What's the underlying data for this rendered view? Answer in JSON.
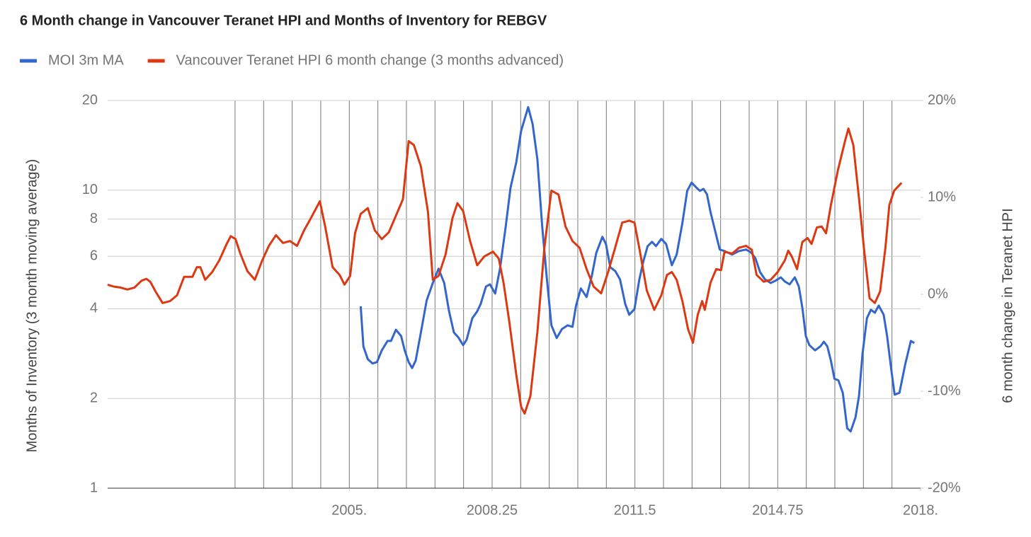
{
  "chart_data": {
    "type": "line",
    "title": "6 Month change in Vancouver Teranet HPI and Months of Inventory for REBGV",
    "ylabel": "Months of Inventory (3 month moving average)",
    "y2label": "6 month change in Teranet HPI",
    "xlim": [
      1999.5,
      2018
    ],
    "xticks": [
      {
        "value": 2005,
        "label": "2005."
      },
      2008.25,
      2011.5,
      2014.75,
      {
        "value": 2018,
        "label": "2018."
      }
    ],
    "xgrid": [
      2002.4,
      2003.05,
      2003.7,
      2004.35,
      2005,
      2005.65,
      2006.3,
      2006.95,
      2007.6,
      2008.25,
      2008.9,
      2009.55,
      2010.2,
      2010.85,
      2011.5,
      2012.15,
      2012.8,
      2013.45,
      2014.1,
      2014.75,
      2015.4,
      2016.05,
      2016.7,
      2017.35
    ],
    "ylim": [
      1,
      20
    ],
    "ylog": true,
    "yticks": [
      1,
      2,
      4,
      6,
      8,
      10,
      20
    ],
    "y2lim": [
      -20,
      20
    ],
    "y2ticks": [
      {
        "value": -20,
        "label": "-20%"
      },
      {
        "value": -10,
        "label": "-10%"
      },
      {
        "value": 0,
        "label": "0%"
      },
      {
        "value": 10,
        "label": "10%"
      },
      {
        "value": 20,
        "label": "20%"
      }
    ],
    "grid": true,
    "legend": "top",
    "series": [
      {
        "name": "MOI 3m MA",
        "color": "#3366cc",
        "axis": "y",
        "x": [
          2005.26,
          2005.32,
          2005.42,
          2005.53,
          2005.63,
          2005.74,
          2005.87,
          2005.95,
          2006.06,
          2006.18,
          2006.26,
          2006.35,
          2006.43,
          2006.51,
          2006.63,
          2006.76,
          2006.9,
          2007.03,
          2007.16,
          2007.27,
          2007.38,
          2007.48,
          2007.59,
          2007.67,
          2007.8,
          2007.91,
          2007.99,
          2008.11,
          2008.2,
          2008.32,
          2008.43,
          2008.56,
          2008.67,
          2008.8,
          2008.91,
          2009.07,
          2009.17,
          2009.28,
          2009.39,
          2009.49,
          2009.6,
          2009.72,
          2009.84,
          2009.97,
          2010.08,
          2010.16,
          2010.27,
          2010.4,
          2010.52,
          2010.62,
          2010.76,
          2010.84,
          2010.94,
          2011.05,
          2011.16,
          2011.28,
          2011.37,
          2011.49,
          2011.6,
          2011.69,
          2011.79,
          2011.89,
          2011.98,
          2012.1,
          2012.21,
          2012.34,
          2012.45,
          2012.58,
          2012.69,
          2012.79,
          2012.9,
          2012.98,
          2013.06,
          2013.14,
          2013.22,
          2013.34,
          2013.43,
          2013.54,
          2013.71,
          2013.87,
          2014.03,
          2014.14,
          2014.24,
          2014.35,
          2014.46,
          2014.59,
          2014.7,
          2014.82,
          2014.91,
          2015.02,
          2015.14,
          2015.23,
          2015.31,
          2015.39,
          2015.47,
          2015.6,
          2015.72,
          2015.8,
          2015.88,
          2015.96,
          2016.04,
          2016.13,
          2016.23,
          2016.33,
          2016.41,
          2016.52,
          2016.6,
          2016.68,
          2016.78,
          2016.87,
          2016.96,
          2017.05,
          2017.16,
          2017.24,
          2017.33,
          2017.41,
          2017.52,
          2017.65,
          2017.78,
          2017.86
        ],
        "values": [
          4.08,
          2.99,
          2.71,
          2.62,
          2.65,
          2.9,
          3.12,
          3.12,
          3.4,
          3.24,
          2.9,
          2.65,
          2.53,
          2.68,
          3.33,
          4.26,
          4.88,
          5.45,
          4.88,
          3.92,
          3.33,
          3.21,
          3.02,
          3.15,
          3.72,
          3.92,
          4.15,
          4.75,
          4.83,
          4.5,
          5.45,
          7.56,
          10.2,
          12.4,
          15.8,
          19.0,
          16.7,
          12.7,
          7.56,
          5.16,
          3.52,
          3.19,
          3.42,
          3.52,
          3.48,
          4.1,
          4.68,
          4.38,
          5.16,
          6.15,
          6.97,
          6.6,
          5.51,
          5.36,
          5.02,
          4.15,
          3.82,
          3.99,
          5.02,
          5.75,
          6.49,
          6.71,
          6.49,
          6.86,
          6.6,
          5.6,
          6.08,
          7.77,
          9.95,
          10.6,
          10.2,
          9.95,
          10.1,
          9.68,
          8.44,
          7.16,
          6.32,
          6.25,
          6.08,
          6.25,
          6.32,
          6.18,
          5.92,
          5.3,
          5.02,
          4.88,
          4.97,
          5.1,
          4.94,
          4.83,
          5.1,
          4.75,
          4.03,
          3.24,
          3.02,
          2.9,
          2.99,
          3.1,
          2.99,
          2.68,
          2.33,
          2.3,
          2.09,
          1.59,
          1.55,
          1.73,
          2.04,
          2.83,
          3.72,
          3.97,
          3.88,
          4.1,
          3.82,
          3.24,
          2.53,
          2.06,
          2.09,
          2.6,
          3.12,
          3.07
        ]
      },
      {
        "name": "Vancouver Teranet HPI 6 month change (3 months advanced)",
        "color": "#dc3912",
        "axis": "y2",
        "x": [
          1999.5,
          1999.63,
          1999.79,
          1999.95,
          2000.11,
          2000.27,
          2000.38,
          2000.47,
          2000.59,
          2000.75,
          2000.92,
          2001.08,
          2001.24,
          2001.32,
          2001.43,
          2001.53,
          2001.61,
          2001.72,
          2001.88,
          2002.04,
          2002.2,
          2002.3,
          2002.41,
          2002.52,
          2002.68,
          2002.85,
          2003.01,
          2003.17,
          2003.33,
          2003.41,
          2003.49,
          2003.65,
          2003.81,
          2003.97,
          2004.13,
          2004.33,
          2004.45,
          2004.62,
          2004.78,
          2004.89,
          2005.02,
          2005.13,
          2005.26,
          2005.42,
          2005.58,
          2005.74,
          2005.9,
          2006.06,
          2006.22,
          2006.35,
          2006.47,
          2006.63,
          2006.79,
          2006.9,
          2007.03,
          2007.19,
          2007.35,
          2007.46,
          2007.59,
          2007.75,
          2007.91,
          2008.07,
          2008.27,
          2008.4,
          2008.51,
          2008.64,
          2008.8,
          2008.91,
          2008.99,
          2009.12,
          2009.28,
          2009.44,
          2009.6,
          2009.76,
          2009.92,
          2010.08,
          2010.24,
          2010.4,
          2010.56,
          2010.73,
          2010.89,
          2011.05,
          2011.21,
          2011.37,
          2011.49,
          2011.61,
          2011.77,
          2011.94,
          2012.1,
          2012.23,
          2012.34,
          2012.45,
          2012.58,
          2012.71,
          2012.82,
          2012.93,
          2013.03,
          2013.09,
          2013.22,
          2013.35,
          2013.46,
          2013.54,
          2013.71,
          2013.87,
          2014.03,
          2014.16,
          2014.27,
          2014.43,
          2014.59,
          2014.75,
          2014.91,
          2014.99,
          2015.07,
          2015.19,
          2015.31,
          2015.43,
          2015.52,
          2015.64,
          2015.75,
          2015.85,
          2015.96,
          2016.12,
          2016.28,
          2016.36,
          2016.47,
          2016.6,
          2016.71,
          2016.84,
          2016.96,
          2017.08,
          2017.2,
          2017.29,
          2017.4,
          2017.57
        ],
        "values": [
          1.0,
          0.8,
          0.7,
          0.5,
          0.7,
          1.4,
          1.6,
          1.3,
          0.3,
          -0.9,
          -0.7,
          -0.1,
          1.8,
          1.8,
          1.8,
          2.8,
          2.8,
          1.5,
          2.3,
          3.5,
          5.1,
          6.0,
          5.7,
          4.2,
          2.4,
          1.5,
          3.4,
          5.0,
          6.1,
          5.7,
          5.3,
          5.5,
          5.0,
          6.6,
          7.9,
          9.6,
          7.0,
          2.8,
          2.0,
          1.0,
          1.9,
          6.3,
          8.3,
          8.9,
          6.6,
          5.7,
          6.4,
          8.1,
          9.8,
          15.8,
          15.4,
          13.2,
          8.5,
          1.5,
          1.9,
          4.1,
          7.9,
          9.4,
          8.6,
          5.5,
          3.0,
          3.9,
          4.4,
          3.7,
          1.2,
          -2.8,
          -8.3,
          -11.6,
          -12.3,
          -10.5,
          -3.9,
          4.8,
          10.7,
          10.3,
          7.0,
          5.5,
          4.8,
          2.6,
          0.8,
          0.1,
          2.3,
          4.8,
          7.4,
          7.6,
          7.4,
          4.5,
          0.4,
          -1.6,
          -0.1,
          2.0,
          2.3,
          1.5,
          -0.7,
          -3.6,
          -5.0,
          -2.1,
          -0.7,
          -1.6,
          1.2,
          2.6,
          2.5,
          4.4,
          4.2,
          4.8,
          5.0,
          4.6,
          2.0,
          1.3,
          1.5,
          2.3,
          3.5,
          4.5,
          3.9,
          2.6,
          5.4,
          5.8,
          5.2,
          6.9,
          7.0,
          6.3,
          9.2,
          12.8,
          15.8,
          17.1,
          15.4,
          9.9,
          4.8,
          -0.4,
          -0.9,
          0.3,
          4.8,
          9.2,
          10.7,
          11.5
        ]
      }
    ]
  }
}
